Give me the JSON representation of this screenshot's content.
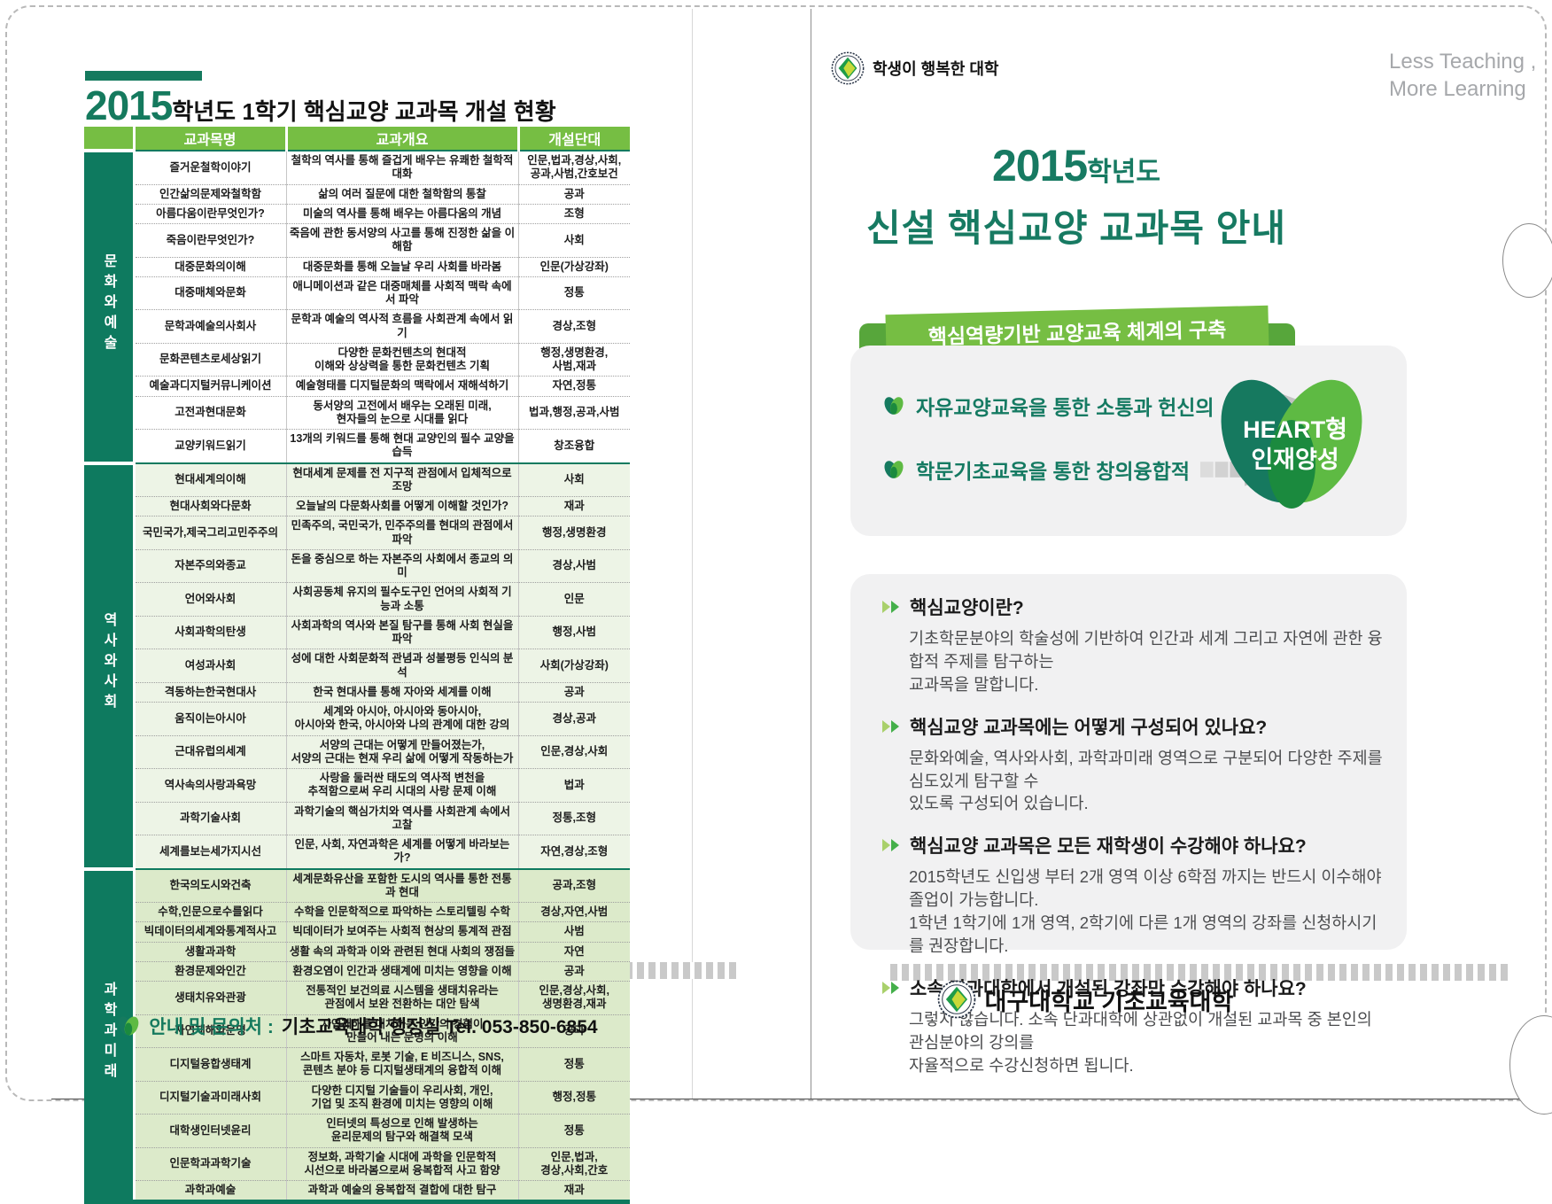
{
  "colors": {
    "accent_green": "#76BE43",
    "deep_teal": "#0E7A5F",
    "title_teal": "#177A62",
    "section2_bg": "#EDF4E6",
    "section3_bg": "#DCEACA",
    "panel_gray": "#F1F1F2",
    "slogan_gray": "#A6A8AB"
  },
  "left": {
    "title": {
      "year": "2015",
      "mid": "학년도 1학기 ",
      "strong": "핵심교양 교과목 개설 현황"
    },
    "table": {
      "headers": [
        "교과목명",
        "교과개요",
        "개설단대"
      ],
      "sections": [
        {
          "label": "문화와예술",
          "rows": [
            [
              "즐거운철학이야기",
              "철학의 역사를 통해 즐겁게 배우는 유쾌한 철학적 대화",
              "인문,법과,경상,사회,\n공과,사범,간호보건"
            ],
            [
              "인간삶의문제와철학함",
              "삶의 여러 질문에 대한 철학함의 통찰",
              "공과"
            ],
            [
              "아름다움이란무엇인가?",
              "미술의 역사를 통해 배우는 아름다움의 개념",
              "조형"
            ],
            [
              "죽음이란무엇인가?",
              "죽음에 관한 동서양의 사고를 통해 진정한 삶을 이해함",
              "사회"
            ],
            [
              "대중문화의이해",
              "대중문화를 통해 오늘날 우리 사회를 바라봄",
              "인문(가상강좌)"
            ],
            [
              "대중매체와문화",
              "애니메이션과 같은 대중매체를 사회적 맥락 속에서 파악",
              "정통"
            ],
            [
              "문학과예술의사회사",
              "문학과 예술의 역사적 흐름을 사회관계 속에서 읽기",
              "경상,조형"
            ],
            [
              "문화콘텐츠로세상읽기",
              "다양한 문화컨텐츠의 현대적\n이해와 상상력을 통한 문화컨텐츠 기획",
              "행정,생명환경,\n사범,재과"
            ],
            [
              "예술과디지털커뮤니케이션",
              "예술형태를 디지털문화의 맥락에서 재해석하기",
              "자연,정통"
            ],
            [
              "고전과현대문화",
              "동서양의 고전에서 배우는 오래된 미래,\n현자들의 눈으로 시대를 읽다",
              "법과,행정,공과,사범"
            ],
            [
              "교양키워드읽기",
              "13개의 키워드를 통해 현대 교양인의 필수 교양을 습득",
              "창조융합"
            ]
          ]
        },
        {
          "label": "역사와사회",
          "rows": [
            [
              "현대세계의이해",
              "현대세계 문제를 전 지구적 관점에서 입체적으로 조망",
              "사회"
            ],
            [
              "현대사회와다문화",
              "오늘날의 다문화사회를 어떻게 이해할 것인가?",
              "재과"
            ],
            [
              "국민국가,제국그리고민주주의",
              "민족주의, 국민국가, 민주주의를 현대의 관점에서 파악",
              "행정,생명환경"
            ],
            [
              "자본주의와종교",
              "돈을 중심으로 하는 자본주의 사회에서 종교의 의미",
              "경상,사범"
            ],
            [
              "언어와사회",
              "사회공동체 유지의 필수도구인 언어의 사회적 기능과 소통",
              "인문"
            ],
            [
              "사회과학의탄생",
              "사회과학의 역사와 본질 탐구를 통해 사회 현실을 파악",
              "행정,사범"
            ],
            [
              "여성과사회",
              "성에 대한 사회문화적 관념과 성불평등 인식의 분석",
              "사회(가상강좌)"
            ],
            [
              "격동하는한국현대사",
              "한국 현대사를 통해 자아와 세계를 이해",
              "공과"
            ],
            [
              "움직이는아시아",
              "세계와 아시아, 아시아와 동아시아,\n아시아와 한국, 아시아와 나의 관계에 대한 강의",
              "경상,공과"
            ],
            [
              "근대유럽의세계",
              "서양의 근대는 어떻게 만들어졌는가,\n서양의 근대는 현재 우리 삶에 어떻게 작동하는가",
              "인문,경상,사회"
            ],
            [
              "역사속의사랑과욕망",
              "사랑을 둘러싼 태도의 역사적 변천을\n추적함으로써 우리 시대의 사랑 문제 이해",
              "법과"
            ],
            [
              "과학기술사회",
              "과학기술의 핵심가치와 역사를 사회관계 속에서 고찰",
              "정통,조형"
            ],
            [
              "세계를보는세가지시선",
              "인문, 사회, 자연과학은 세계를 어떻게 바라보는가?",
              "자연,경상,조형"
            ]
          ]
        },
        {
          "label": "과학과미래",
          "rows": [
            [
              "한국의도시와건축",
              "세계문화유산을 포함한 도시의 역사를 통한 전통과 현대",
              "공과,조형"
            ],
            [
              "수학,인문으로수를읽다",
              "수학을 인문학적으로 파악하는 스토리텔링 수학",
              "경상,자연,사범"
            ],
            [
              "빅데이터의세계와통계적사고",
              "빅데이터가 보여주는 사회적 현상의 통계적 관점",
              "사범"
            ],
            [
              "생활과과학",
              "생활 속의 과학과 이와 관련된 현대 사회의 쟁점들",
              "자연"
            ],
            [
              "환경문제와인간",
              "환경오염이 인간과 생태계에 미치는 영향을 이해",
              "공과"
            ],
            [
              "생태치유와관광",
              "전통적인 보건의료 시스템을 생태치유라는\n관점에서 보완 전환하는 대안 탐색",
              "인문,경상,사회,\n생명환경,재과"
            ],
            [
              "자연재해와문명",
              "자연재해를 대처하는 인간의 경험이\n만들어 내는 문명의 이해",
              "공과"
            ],
            [
              "디지털융합생태계",
              "스마트 자동차, 로봇 기술, E 비즈니스, SNS,\n콘텐츠 분야 등 디지털생태계의 융합적 이해",
              "정통"
            ],
            [
              "디지털기술과미래사회",
              "다양한 디지털 기술들이 우리사회, 개인,\n기업 및 조직 환경에 미치는 영향의 이해",
              "행정,정통"
            ],
            [
              "대학생인터넷윤리",
              "인터넷의 특성으로 인해 발생하는\n윤리문제의 탐구와 해결책 모색",
              "정통"
            ],
            [
              "인문학과과학기술",
              "정보화, 과학기술 시대에 과학을 인문학적\n시선으로 바라봄으로써 융복합적 사고 함양",
              "인문,법과,\n경상,사회,간호"
            ],
            [
              "과학과예술",
              "과학과 예술의 융복합적 결합에 대한 탐구",
              "재과"
            ]
          ]
        }
      ]
    },
    "contact": {
      "label": "안내 및 문의처 :",
      "value": "기초교육대학 행정실 Tel. 053-850-6854"
    }
  },
  "right": {
    "brand": "학생이 행복한 대학",
    "slogan1": "Less Teaching ,",
    "slogan2": "More Learning",
    "title": {
      "year": "2015",
      "suffix": "학년도",
      "line2": "신설 핵심교양 교과목 안내"
    },
    "ribbon": "핵심역량기반 교양교육 체계의 구축",
    "diagram": {
      "items": [
        "자유교양교육을 통한 소통과 헌신의",
        "학문기초교육을 통한 창의융합적"
      ],
      "heart_line1": "HEART형",
      "heart_line2": "인재양성"
    },
    "qna": [
      {
        "q": "핵심교양이란?",
        "a": "기초학문분야의 학술성에 기반하여 인간과 세계 그리고 자연에 관한 융합적 주제를 탐구하는\n교과목을 말합니다."
      },
      {
        "q": "핵심교양 교과목에는 어떻게 구성되어 있나요?",
        "a": "문화와예술, 역사와사회, 과학과미래 영역으로 구분되어 다양한 주제를 심도있게 탐구할 수\n있도록 구성되어 있습니다."
      },
      {
        "q": "핵심교양 교과목은 모든 재학생이 수강해야 하나요?",
        "a": "2015학년도 신입생 부터 2개 영역 이상 6학점 까지는 반드시 이수해야 졸업이 가능합니다.\n1학년 1학기에 1개 영역, 2학기에 다른 1개 영역의 강좌를 신청하시기를 권장합니다."
      },
      {
        "q": "소속 단과대학에서 개설된 강좌만 수강해야 하나요?",
        "a": "그렇지 않습니다. 소속 단과대학에 상관없이 개설된 교과목 중 본인의 관심분야의 강의를\n자율적으로 수강신청하면 됩니다."
      }
    ],
    "footer": "대구대학교 기초교육대학"
  }
}
